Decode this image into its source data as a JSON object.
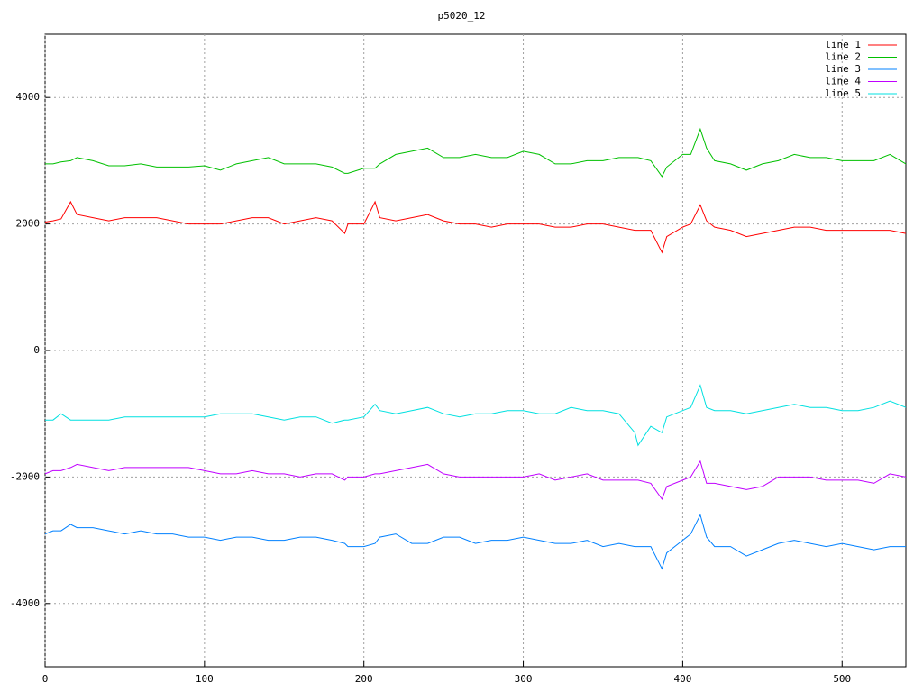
{
  "chart_data": {
    "type": "line",
    "title": "p5020_12",
    "x": [
      0,
      5,
      10,
      16,
      20,
      30,
      40,
      50,
      60,
      70,
      80,
      90,
      100,
      110,
      120,
      130,
      140,
      150,
      160,
      170,
      180,
      188,
      190,
      200,
      207,
      210,
      220,
      230,
      240,
      250,
      260,
      270,
      280,
      290,
      300,
      310,
      320,
      330,
      340,
      350,
      360,
      370,
      372,
      380,
      387,
      390,
      400,
      405,
      411,
      415,
      420,
      430,
      440,
      450,
      460,
      470,
      480,
      490,
      500,
      510,
      520,
      530,
      540
    ],
    "series": [
      {
        "name": "line 1",
        "color": "#ff0000",
        "values": [
          2030,
          2050,
          2080,
          2350,
          2150,
          2100,
          2050,
          2100,
          2100,
          2100,
          2050,
          2000,
          2000,
          2000,
          2050,
          2100,
          2100,
          2000,
          2050,
          2100,
          2050,
          1850,
          2000,
          2000,
          2350,
          2100,
          2050,
          2100,
          2150,
          2050,
          2000,
          2000,
          1950,
          2000,
          2000,
          2000,
          1950,
          1950,
          2000,
          2000,
          1950,
          1900,
          1900,
          1900,
          1550,
          1800,
          1950,
          2000,
          2300,
          2050,
          1950,
          1900,
          1800,
          1850,
          1900,
          1950,
          1950,
          1900,
          1900,
          1900,
          1900,
          1900,
          1850
        ]
      },
      {
        "name": "line 2",
        "color": "#00c000",
        "values": [
          2950,
          2950,
          2980,
          3000,
          3050,
          3000,
          2920,
          2920,
          2950,
          2900,
          2900,
          2900,
          2920,
          2850,
          2950,
          3000,
          3050,
          2950,
          2950,
          2950,
          2900,
          2800,
          2800,
          2880,
          2880,
          2950,
          3100,
          3150,
          3200,
          3050,
          3050,
          3100,
          3050,
          3050,
          3150,
          3100,
          2950,
          2950,
          3000,
          3000,
          3050,
          3050,
          3050,
          3000,
          2750,
          2900,
          3100,
          3100,
          3500,
          3200,
          3000,
          2950,
          2850,
          2950,
          3000,
          3100,
          3050,
          3050,
          3000,
          3000,
          3000,
          3100,
          2950
        ]
      },
      {
        "name": "line 3",
        "color": "#0080ff",
        "values": [
          -2900,
          -2850,
          -2850,
          -2750,
          -2800,
          -2800,
          -2850,
          -2900,
          -2850,
          -2900,
          -2900,
          -2950,
          -2950,
          -3000,
          -2950,
          -2950,
          -3000,
          -3000,
          -2950,
          -2950,
          -3000,
          -3050,
          -3100,
          -3100,
          -3050,
          -2950,
          -2900,
          -3050,
          -3050,
          -2950,
          -2950,
          -3050,
          -3000,
          -3000,
          -2950,
          -3000,
          -3050,
          -3050,
          -3000,
          -3100,
          -3050,
          -3100,
          -3100,
          -3100,
          -3450,
          -3200,
          -3000,
          -2900,
          -2600,
          -2950,
          -3100,
          -3100,
          -3250,
          -3150,
          -3050,
          -3000,
          -3050,
          -3100,
          -3050,
          -3100,
          -3150,
          -3100,
          -3100
        ]
      },
      {
        "name": "line 4",
        "color": "#c000ff",
        "values": [
          -1950,
          -1900,
          -1900,
          -1850,
          -1800,
          -1850,
          -1900,
          -1850,
          -1850,
          -1850,
          -1850,
          -1850,
          -1900,
          -1950,
          -1950,
          -1900,
          -1950,
          -1950,
          -2000,
          -1950,
          -1950,
          -2050,
          -2000,
          -2000,
          -1950,
          -1950,
          -1900,
          -1850,
          -1800,
          -1950,
          -2000,
          -2000,
          -2000,
          -2000,
          -2000,
          -1950,
          -2050,
          -2000,
          -1950,
          -2050,
          -2050,
          -2050,
          -2050,
          -2100,
          -2350,
          -2150,
          -2050,
          -2000,
          -1750,
          -2100,
          -2100,
          -2150,
          -2200,
          -2150,
          -2000,
          -2000,
          -2000,
          -2050,
          -2050,
          -2050,
          -2100,
          -1950,
          -2000
        ]
      },
      {
        "name": "line 5",
        "color": "#00e0e0",
        "values": [
          -1100,
          -1100,
          -1000,
          -1100,
          -1100,
          -1100,
          -1100,
          -1050,
          -1050,
          -1050,
          -1050,
          -1050,
          -1050,
          -1000,
          -1000,
          -1000,
          -1050,
          -1100,
          -1050,
          -1050,
          -1150,
          -1100,
          -1100,
          -1050,
          -850,
          -950,
          -1000,
          -950,
          -900,
          -1000,
          -1050,
          -1000,
          -1000,
          -950,
          -950,
          -1000,
          -1000,
          -900,
          -950,
          -950,
          -1000,
          -1300,
          -1500,
          -1200,
          -1300,
          -1050,
          -950,
          -900,
          -550,
          -900,
          -950,
          -950,
          -1000,
          -950,
          -900,
          -850,
          -900,
          -900,
          -950,
          -950,
          -900,
          -800,
          -900
        ]
      }
    ],
    "xlim": [
      0,
      540
    ],
    "xticks": [
      0,
      100,
      200,
      300,
      400,
      500
    ],
    "ylim": [
      -5000,
      5000
    ],
    "yticks": [
      -4000,
      -2000,
      0,
      2000,
      4000
    ],
    "grid": true,
    "legend": "top-right"
  }
}
